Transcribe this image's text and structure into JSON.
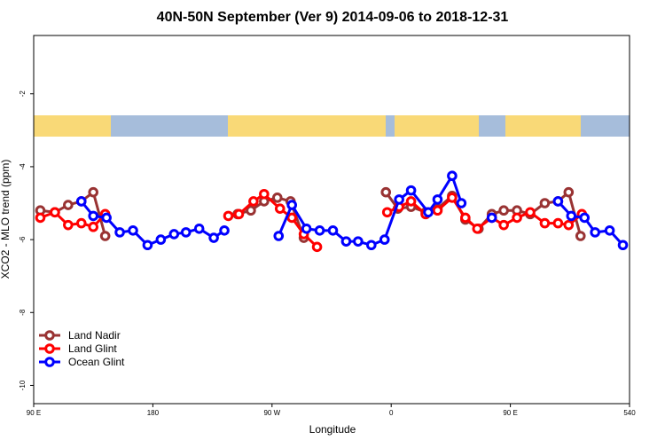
{
  "chart_data": {
    "type": "line",
    "title": "40N-50N September (Ver 9)   2014-09-06 to 2018-12-31",
    "x_label": "Longitude",
    "y_label": "XCO2 - MLO trend (ppm)",
    "xlim": [
      90,
      540
    ],
    "ylim": [
      -10.5,
      -0.4
    ],
    "xticks": [
      {
        "value": 90,
        "label": "90 E"
      },
      180,
      {
        "value": 270,
        "label": "90 W"
      },
      {
        "value": 360,
        "label": "0"
      },
      {
        "value": 450,
        "label": "90 E"
      },
      540
    ],
    "yticks": [
      -10,
      -8,
      -6,
      -4,
      -2
    ],
    "legend": "bottom-left",
    "series": [
      {
        "name": "Land Nadir",
        "color": "#993333",
        "x": [
          95,
          106,
          116,
          126,
          135,
          144,
          244,
          254,
          264,
          274,
          284,
          294,
          356,
          365,
          375,
          386,
          395,
          406,
          416,
          426,
          436,
          445,
          455,
          465,
          476,
          486,
          494,
          503
        ],
        "values": [
          -5.2,
          -5.25,
          -5.05,
          -4.95,
          -4.7,
          -5.9,
          -5.3,
          -5.2,
          -4.95,
          -4.85,
          -4.95,
          -5.95,
          -4.7,
          -5.15,
          -5.1,
          -5.25,
          -5.15,
          -4.8,
          -5.45,
          -5.7,
          -5.3,
          -5.2,
          -5.2,
          -5.3,
          -5.0,
          -4.95,
          -4.7,
          -5.9
        ]
      },
      {
        "name": "Land Glint",
        "color": "#ff0000",
        "x": [
          95,
          106,
          116,
          126,
          135,
          144,
          237,
          245,
          256,
          264,
          276,
          285,
          294,
          304,
          357,
          366,
          375,
          386,
          395,
          406,
          416,
          425,
          436,
          445,
          455,
          465,
          476,
          486,
          494,
          504
        ],
        "values": [
          -5.4,
          -5.25,
          -5.6,
          -5.55,
          -5.65,
          -5.3,
          -5.35,
          -5.3,
          -4.95,
          -4.75,
          -5.15,
          -5.4,
          -5.85,
          -6.2,
          -5.25,
          -5.1,
          -4.95,
          -5.3,
          -5.2,
          -4.85,
          -5.4,
          -5.7,
          -5.4,
          -5.6,
          -5.4,
          -5.25,
          -5.55,
          -5.55,
          -5.6,
          -5.3
        ]
      },
      {
        "name": "Ocean Glint",
        "color": "#0000ff",
        "x": [
          126,
          135,
          145,
          155,
          165,
          176,
          186,
          196,
          205,
          215,
          226,
          234,
          275,
          285,
          296,
          306,
          316,
          326,
          335,
          345,
          355,
          366,
          375,
          388,
          395,
          406,
          413,
          436,
          486,
          496,
          506,
          514,
          525,
          535
        ],
        "values": [
          -4.95,
          -5.35,
          -5.4,
          -5.8,
          -5.75,
          -6.15,
          -6.0,
          -5.85,
          -5.8,
          -5.7,
          -5.95,
          -5.75,
          -5.9,
          -5.05,
          -5.7,
          -5.75,
          -5.75,
          -6.05,
          -6.05,
          -6.15,
          -6.0,
          -4.9,
          -4.65,
          -5.25,
          -4.9,
          -4.25,
          -5.0,
          -5.4,
          -4.95,
          -5.35,
          -5.4,
          -5.8,
          -5.75,
          -6.15
        ]
      }
    ]
  }
}
